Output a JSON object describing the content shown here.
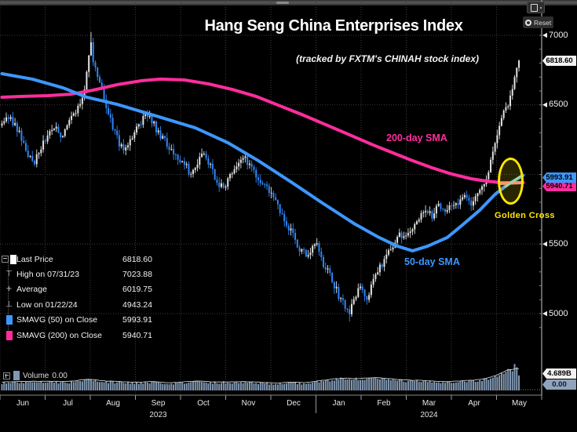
{
  "window": {
    "reset_label": "Reset"
  },
  "chart": {
    "title": "Hang Seng China Enterprises Index",
    "subtitle": "(tracked by FXTM's CHINAH stock index)",
    "annotations": {
      "sma200_label": "200-day SMA",
      "sma50_label": "50-day SMA",
      "golden_cross_label": "Golden Cross"
    },
    "legend": {
      "icons": {
        "high": "⊤",
        "average": "+",
        "low": "⊥"
      },
      "rows": [
        {
          "swatch": "#ffffff",
          "label": "Last Price",
          "value": "6818.60"
        },
        {
          "icon": "high",
          "label": "High on 07/31/23",
          "value": "7023.88"
        },
        {
          "icon": "average",
          "label": "Average",
          "value": "6019.75"
        },
        {
          "icon": "low",
          "label": "Low on 01/22/24",
          "value": "4943.24"
        },
        {
          "swatch": "#3d97ff",
          "label": "SMAVG (50)  on Close",
          "value": "5993.91"
        },
        {
          "swatch": "#ff2d9e",
          "label": "SMAVG (200)  on Close",
          "value": "5940.71"
        }
      ]
    },
    "volume_legend": {
      "label": "Volume",
      "value": "0.00"
    },
    "axis_badges": {
      "last_price": "6818.60",
      "sma50": "5993.91",
      "sma200": "5940.71",
      "volume_max": "4.689B",
      "volume_zero": "0.00"
    }
  },
  "chart_data": {
    "type": "candlestick",
    "title": "Hang Seng China Enterprises Index",
    "subtitle": "(tracked by FXTM's CHINAH stock index)",
    "x_axis": {
      "months": [
        "Jun",
        "Jul",
        "Aug",
        "Sep",
        "Oct",
        "Nov",
        "Dec",
        "Jan",
        "Feb",
        "Mar",
        "Apr",
        "May"
      ],
      "years": [
        {
          "label": "2023",
          "month_index": 3
        },
        {
          "label": "2024",
          "month_index": 9
        }
      ]
    },
    "y_axis": {
      "visible_labels": [
        7000,
        6500,
        5500,
        5000
      ],
      "gridlines": [
        7000,
        6500,
        6000,
        5500,
        5000
      ],
      "price_top": 7250,
      "price_bottom": 4720
    },
    "key_points": {
      "last_price": 6818.6,
      "high": {
        "date": "07/31/23",
        "value": 7023.88
      },
      "average": 6019.75,
      "low": {
        "date": "01/22/24",
        "value": 4943.24
      },
      "sma50_last": 5993.91,
      "sma200_last": 5940.71,
      "golden_cross": true
    },
    "price_path": [
      [
        0,
        6350
      ],
      [
        3,
        6420
      ],
      [
        6,
        6350
      ],
      [
        9,
        6260
      ],
      [
        12,
        6150
      ],
      [
        15,
        6100
      ],
      [
        18,
        6200
      ],
      [
        21,
        6280
      ],
      [
        24,
        6350
      ],
      [
        27,
        6280
      ],
      [
        30,
        6350
      ],
      [
        33,
        6420
      ],
      [
        36,
        6500
      ],
      [
        38,
        6600
      ],
      [
        40,
        6850
      ],
      [
        41,
        6960
      ],
      [
        42,
        6820
      ],
      [
        45,
        6650
      ],
      [
        48,
        6480
      ],
      [
        51,
        6350
      ],
      [
        54,
        6220
      ],
      [
        57,
        6180
      ],
      [
        60,
        6280
      ],
      [
        62,
        6320
      ],
      [
        63,
        6350
      ],
      [
        66,
        6420
      ],
      [
        69,
        6380
      ],
      [
        72,
        6300
      ],
      [
        75,
        6250
      ],
      [
        78,
        6180
      ],
      [
        81,
        6120
      ],
      [
        83,
        6080
      ],
      [
        84,
        6080
      ],
      [
        87,
        6000
      ],
      [
        90,
        6080
      ],
      [
        93,
        6150
      ],
      [
        96,
        6050
      ],
      [
        99,
        5950
      ],
      [
        102,
        5900
      ],
      [
        104,
        5950
      ],
      [
        105,
        5990
      ],
      [
        108,
        6060
      ],
      [
        111,
        6120
      ],
      [
        114,
        6080
      ],
      [
        117,
        6000
      ],
      [
        120,
        5920
      ],
      [
        123,
        5880
      ],
      [
        125,
        5850
      ],
      [
        126,
        5800
      ],
      [
        129,
        5700
      ],
      [
        132,
        5620
      ],
      [
        135,
        5520
      ],
      [
        138,
        5440
      ],
      [
        141,
        5420
      ],
      [
        144,
        5520
      ],
      [
        146,
        5440
      ],
      [
        147,
        5380
      ],
      [
        150,
        5300
      ],
      [
        153,
        5200
      ],
      [
        156,
        5100
      ],
      [
        159,
        5020
      ],
      [
        160,
        4990
      ],
      [
        162,
        5100
      ],
      [
        165,
        5220
      ],
      [
        167,
        5150
      ],
      [
        168,
        5100
      ],
      [
        171,
        5240
      ],
      [
        174,
        5330
      ],
      [
        177,
        5420
      ],
      [
        180,
        5500
      ],
      [
        183,
        5560
      ],
      [
        186,
        5540
      ],
      [
        188,
        5580
      ],
      [
        189,
        5620
      ],
      [
        192,
        5690
      ],
      [
        195,
        5740
      ],
      [
        198,
        5700
      ],
      [
        201,
        5770
      ],
      [
        204,
        5730
      ],
      [
        207,
        5760
      ],
      [
        209,
        5780
      ],
      [
        210,
        5800
      ],
      [
        213,
        5850
      ],
      [
        216,
        5800
      ],
      [
        219,
        5870
      ],
      [
        222,
        5940
      ],
      [
        224,
        6040
      ],
      [
        226,
        6160
      ],
      [
        228,
        6300
      ],
      [
        230,
        6420
      ],
      [
        231,
        6480
      ],
      [
        233,
        6500
      ],
      [
        234,
        6560
      ],
      [
        236,
        6680
      ],
      [
        237,
        6760
      ],
      [
        238,
        6818.6
      ]
    ],
    "sma50": [
      [
        0,
        6724
      ],
      [
        14,
        6685
      ],
      [
        28,
        6623
      ],
      [
        39,
        6555
      ],
      [
        53,
        6504
      ],
      [
        71,
        6420
      ],
      [
        89,
        6335
      ],
      [
        104,
        6228
      ],
      [
        118,
        6099
      ],
      [
        133,
        5947
      ],
      [
        147,
        5800
      ],
      [
        162,
        5648
      ],
      [
        173,
        5552
      ],
      [
        182,
        5485
      ],
      [
        189,
        5451
      ],
      [
        196,
        5485
      ],
      [
        205,
        5547
      ],
      [
        212,
        5637
      ],
      [
        220,
        5744
      ],
      [
        227,
        5857
      ],
      [
        233,
        5930
      ],
      [
        240,
        5993.91
      ]
    ],
    "sma200": [
      [
        0,
        6555
      ],
      [
        10,
        6561
      ],
      [
        21,
        6566
      ],
      [
        32,
        6577
      ],
      [
        42,
        6606
      ],
      [
        53,
        6645
      ],
      [
        64,
        6673
      ],
      [
        73,
        6685
      ],
      [
        84,
        6679
      ],
      [
        95,
        6651
      ],
      [
        106,
        6611
      ],
      [
        117,
        6561
      ],
      [
        127,
        6499
      ],
      [
        138,
        6431
      ],
      [
        149,
        6358
      ],
      [
        160,
        6285
      ],
      [
        171,
        6211
      ],
      [
        180,
        6155
      ],
      [
        189,
        6099
      ],
      [
        198,
        6048
      ],
      [
        207,
        6003
      ],
      [
        216,
        5969
      ],
      [
        223,
        5952
      ],
      [
        230,
        5941
      ],
      [
        240,
        5940.71
      ]
    ],
    "volume": {
      "max_label": "4.689B",
      "max_value_b": 4.689,
      "profile_b": [
        [
          0,
          1.3
        ],
        [
          10,
          1.5
        ],
        [
          20,
          1.6
        ],
        [
          30,
          1.4
        ],
        [
          40,
          1.9
        ],
        [
          50,
          1.5
        ],
        [
          60,
          1.3
        ],
        [
          70,
          1.4
        ],
        [
          80,
          1.3
        ],
        [
          90,
          1.5
        ],
        [
          100,
          1.4
        ],
        [
          110,
          1.5
        ],
        [
          120,
          1.3
        ],
        [
          130,
          1.2
        ],
        [
          140,
          1.3
        ],
        [
          150,
          1.7
        ],
        [
          158,
          2.2
        ],
        [
          165,
          2.0
        ],
        [
          172,
          2.1
        ],
        [
          180,
          1.8
        ],
        [
          190,
          1.6
        ],
        [
          200,
          1.5
        ],
        [
          210,
          1.6
        ],
        [
          218,
          1.7
        ],
        [
          224,
          2.1
        ],
        [
          228,
          2.6
        ],
        [
          231,
          3.2
        ],
        [
          233,
          3.8
        ],
        [
          235,
          3.4
        ],
        [
          236,
          4.689
        ],
        [
          237,
          4.2
        ],
        [
          238,
          2.6
        ]
      ]
    },
    "colors": {
      "up_candle": "#e2e2e2",
      "down_candle": "#2f86f6",
      "sma50": "#3d97ff",
      "sma200": "#ff2d9e",
      "volume_bar": "#8299b3",
      "highlight_yellow": "#ffe600",
      "grid": "#3c3c3c"
    },
    "layout": {
      "grid": "dotted",
      "legend_position": "bottom-left",
      "panes": [
        "price",
        "volume"
      ]
    }
  }
}
